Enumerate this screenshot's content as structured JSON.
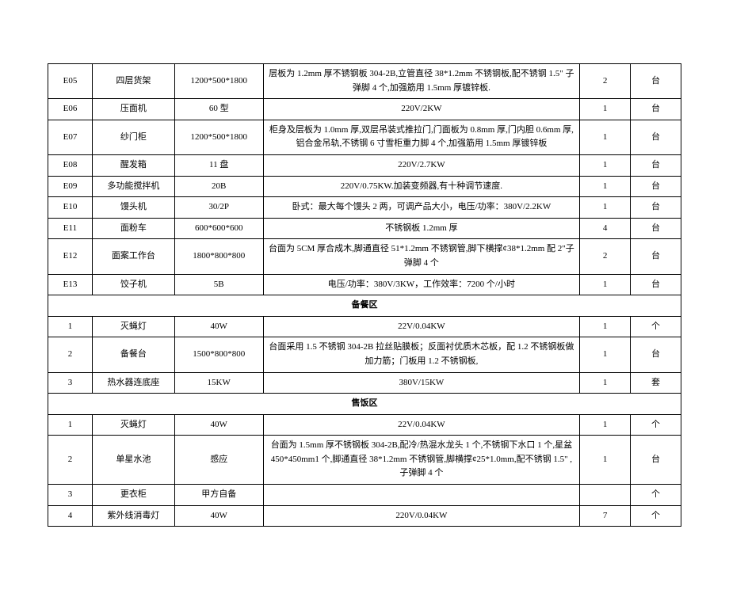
{
  "colgroup": [
    "col-code",
    "col-name",
    "col-spec",
    "col-desc",
    "col-qty",
    "col-unit"
  ],
  "rows": [
    {
      "type": "data",
      "cells": [
        "E05",
        "四层货架",
        "1200*500*1800",
        "层板为 1.2mm 厚不锈钢板 304-2B,立管直径 38*1.2mm 不锈钢板,配不锈钢 1.5\" 子弹脚 4 个,加强筋用 1.5mm 厚镀锌板.",
        "2",
        "台"
      ]
    },
    {
      "type": "data",
      "cells": [
        "E06",
        "压面机",
        "60 型",
        "220V/2KW",
        "1",
        "台"
      ]
    },
    {
      "type": "data",
      "cells": [
        "E07",
        "纱门柜",
        "1200*500*1800",
        "柜身及层板为 1.0mm 厚,双层吊装式推拉门,门面板为 0.8mm 厚,门内胆 0.6mm 厚,铝合金吊轨,不锈钢 6 寸雪柜重力脚 4 个,加强筋用 1.5mm 厚镀锌板",
        "1",
        "台"
      ]
    },
    {
      "type": "data",
      "cells": [
        "E08",
        "醒发箱",
        "11 盘",
        "220V/2.7KW",
        "1",
        "台"
      ]
    },
    {
      "type": "data",
      "cells": [
        "E09",
        "多功能搅拌机",
        "20B",
        "220V/0.75KW.加装变频器,有十种调节速度.",
        "1",
        "台"
      ]
    },
    {
      "type": "data",
      "cells": [
        "E10",
        "馒头机",
        "30/2P",
        "卧式：最大每个馒头 2 两，可调产品大小，电压/功率：380V/2.2KW",
        "1",
        "台"
      ]
    },
    {
      "type": "data",
      "cells": [
        "E11",
        "面粉车",
        "600*600*600",
        "不锈钢板 1.2mm 厚",
        "4",
        "台"
      ]
    },
    {
      "type": "data",
      "cells": [
        "E12",
        "面案工作台",
        "1800*800*800",
        "台面为 5CM 厚合成木,脚通直径 51*1.2mm 不锈钢管,脚下横撑¢38*1.2mm 配 2\"子弹脚 4 个",
        "2",
        "台"
      ]
    },
    {
      "type": "data",
      "cells": [
        "E13",
        "饺子机",
        "5B",
        "电压/功率：380V/3KW，工作效率：7200 个/小时",
        "1",
        "台"
      ]
    },
    {
      "type": "section",
      "label": "备餐区"
    },
    {
      "type": "data",
      "cells": [
        "1",
        "灭蝇灯",
        "40W",
        "22V/0.04KW",
        "1",
        "个"
      ]
    },
    {
      "type": "data",
      "cells": [
        "2",
        "备餐台",
        "1500*800*800",
        "台面采用 1.5 不锈钢 304-2B 拉丝贴膜板；反面衬优质木芯板，配 1.2 不锈钢板做加力筋；门板用 1.2 不锈钢板,",
        "1",
        "台"
      ]
    },
    {
      "type": "data",
      "cells": [
        "3",
        "热水器连底座",
        "15KW",
        "380V/15KW",
        "1",
        "套"
      ]
    },
    {
      "type": "section",
      "label": "售饭区"
    },
    {
      "type": "data",
      "cells": [
        "1",
        "灭蝇灯",
        "40W",
        "22V/0.04KW",
        "1",
        "个"
      ]
    },
    {
      "type": "data",
      "cells": [
        "2",
        "单星水池",
        "感应",
        "台面为 1.5mm 厚不锈钢板 304-2B,配冷/热混水龙头 1 个,不锈钢下水口 1 个,星盆450*450mm1 个,脚通直径 38*1.2mm 不锈钢管,脚横撑¢25*1.0mm,配不锈钢 1.5\" ,子弹脚 4 个",
        "1",
        "台"
      ]
    },
    {
      "type": "data",
      "cells": [
        "3",
        "更衣柜",
        "甲方自备",
        "",
        "",
        "个"
      ]
    },
    {
      "type": "data",
      "cells": [
        "4",
        "紫外线消毒灯",
        "40W",
        "220V/0.04KW",
        "7",
        "个"
      ]
    }
  ]
}
